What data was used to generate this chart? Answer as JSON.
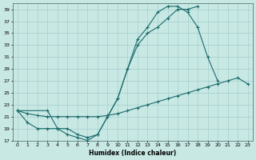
{
  "xlabel": "Humidex (Indice chaleur)",
  "bg_color": "#c8e8e4",
  "line_color": "#1a6b6b",
  "xlim": [
    -0.5,
    23.5
  ],
  "ylim": [
    17,
    40
  ],
  "yticks": [
    17,
    19,
    21,
    23,
    25,
    27,
    29,
    31,
    33,
    35,
    37,
    39
  ],
  "xticks": [
    0,
    1,
    2,
    3,
    4,
    5,
    6,
    7,
    8,
    9,
    10,
    11,
    12,
    13,
    14,
    15,
    16,
    17,
    18,
    19,
    20,
    21,
    22,
    23
  ],
  "line1_x": [
    0,
    1,
    2,
    3,
    4,
    5,
    6,
    7,
    8,
    9,
    10,
    11,
    12,
    13,
    14,
    15,
    16,
    17,
    18
  ],
  "line1_y": [
    22,
    20,
    19,
    19,
    19,
    18,
    17.5,
    17,
    18,
    21,
    24,
    29,
    33,
    35,
    36,
    37.5,
    39,
    39,
    39.5
  ],
  "line2_x": [
    0,
    3,
    4,
    5,
    6,
    7,
    8,
    9,
    10,
    11,
    12,
    13,
    14,
    15,
    16,
    17,
    18,
    19,
    20
  ],
  "line2_y": [
    22,
    22,
    19,
    19,
    18,
    17.5,
    18,
    21,
    24,
    29,
    34,
    36,
    38.5,
    39.5,
    39.5,
    38.5,
    36,
    31,
    27
  ],
  "line3_x": [
    0,
    1,
    2,
    3,
    4,
    5,
    6,
    7,
    8,
    9,
    10,
    11,
    12,
    13,
    14,
    15,
    16,
    17,
    18,
    19,
    20,
    21,
    22,
    23
  ],
  "line3_y": [
    22,
    21.5,
    21.2,
    21,
    21,
    21,
    21,
    21,
    21,
    21.2,
    21.5,
    22,
    22.5,
    23,
    23.5,
    24,
    24.5,
    25,
    25.5,
    26,
    26.5,
    27,
    27.5,
    26.5
  ]
}
